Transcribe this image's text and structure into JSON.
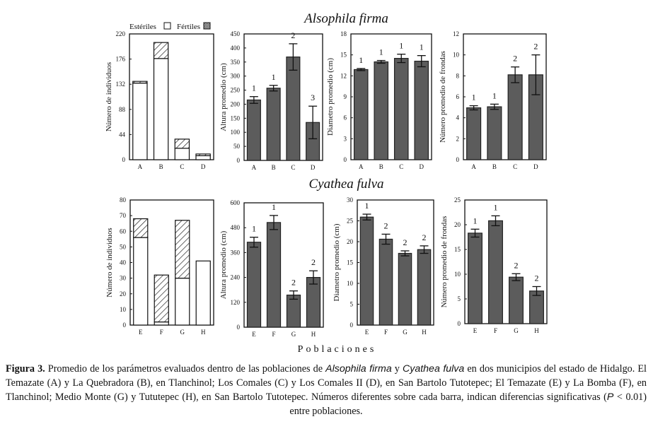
{
  "titles": {
    "top": "Alsophila firma",
    "bottom": "Cyathea fulva"
  },
  "x_axis_label": "Poblaciones",
  "legend": {
    "sterile": "Estériles",
    "fertile": "Fértiles"
  },
  "colors": {
    "bar": "#5c5c5c",
    "bar_stroke": "#222222",
    "sterile": "#ffffff",
    "fertile_hatch": "#111111"
  },
  "caption": {
    "label": "Figura 3.",
    "p1": " Promedio de los parámetros evaluados dentro de las poblaciones de ",
    "sp1": "Alsophila firma",
    "p2": " y ",
    "sp2": "Cyathea fulva",
    "p3": " en dos municipios del estado de Hidalgo. El Temazate (A) y La Quebradora (B), en Tlanchinol; Los Comales (C) y Los Comales II (D), en San Bartolo Tutotepec; El Temazate (E) y La Bomba (F), en Tlanchinol; Medio Monte (G) y Tututepec (H), en San Bartolo Tutotepec. Números diferentes sobre cada barra, indican diferencias significativas (",
    "pvar": "P",
    "p4": " < 0.01) entre poblaciones."
  },
  "chart_data": [
    {
      "type": "bar",
      "stacked": true,
      "species": "Alsophila firma",
      "ylabel": "Número de individuos",
      "categories": [
        "A",
        "B",
        "C",
        "D"
      ],
      "ylim": [
        0,
        220
      ],
      "yticks": [
        0,
        44,
        88,
        132,
        176,
        220
      ],
      "series": [
        {
          "name": "Estériles",
          "values": [
            134,
            177,
            20,
            7
          ]
        },
        {
          "name": "Fértiles",
          "values": [
            3,
            28,
            16,
            3
          ]
        }
      ]
    },
    {
      "type": "bar",
      "species": "Alsophila firma",
      "ylabel": "Altura promedio (cm)",
      "categories": [
        "A",
        "B",
        "C",
        "D"
      ],
      "ylim": [
        0,
        450
      ],
      "yticks": [
        0,
        50,
        100,
        150,
        200,
        250,
        300,
        350,
        400,
        450
      ],
      "values": [
        215,
        257,
        368,
        135
      ],
      "errors": [
        12,
        10,
        47,
        58
      ],
      "group_labels": [
        "1",
        "1",
        "2",
        "3"
      ]
    },
    {
      "type": "bar",
      "species": "Alsophila firma",
      "ylabel": "Diametro promedio (cm)",
      "categories": [
        "A",
        "B",
        "C",
        "D"
      ],
      "ylim": [
        0,
        18
      ],
      "yticks": [
        0,
        3,
        6,
        9,
        12,
        15,
        18
      ],
      "values": [
        12.9,
        14.0,
        14.5,
        14.1
      ],
      "errors": [
        0.15,
        0.2,
        0.6,
        0.8
      ],
      "group_labels": [
        "1",
        "1",
        "1",
        "1"
      ]
    },
    {
      "type": "bar",
      "species": "Alsophila firma",
      "ylabel": "Número promedio de frondas",
      "categories": [
        "A",
        "B",
        "C",
        "D"
      ],
      "ylim": [
        0,
        12
      ],
      "yticks": [
        0,
        2,
        4,
        6,
        8,
        10,
        12
      ],
      "values": [
        4.95,
        5.05,
        8.1,
        8.1
      ],
      "errors": [
        0.2,
        0.25,
        0.75,
        1.9
      ],
      "group_labels": [
        "1",
        "1",
        "2",
        "2"
      ]
    },
    {
      "type": "bar",
      "stacked": true,
      "species": "Cyathea fulva",
      "ylabel": "Número de individuos",
      "categories": [
        "E",
        "F",
        "G",
        "H"
      ],
      "ylim": [
        0,
        80
      ],
      "yticks": [
        0,
        10,
        20,
        30,
        40,
        50,
        60,
        70,
        80
      ],
      "series": [
        {
          "name": "Estériles",
          "values": [
            56,
            2,
            30,
            41
          ]
        },
        {
          "name": "Fértiles",
          "values": [
            12,
            30,
            37,
            0
          ]
        }
      ]
    },
    {
      "type": "bar",
      "species": "Cyathea fulva",
      "ylabel": "Altura promedio (cm)",
      "categories": [
        "E",
        "F",
        "G",
        "H"
      ],
      "ylim": [
        0,
        600
      ],
      "yticks": [
        0,
        120,
        240,
        360,
        480,
        600
      ],
      "values": [
        410,
        505,
        155,
        240
      ],
      "errors": [
        24,
        34,
        20,
        32
      ],
      "group_labels": [
        "1",
        "1",
        "2",
        "2"
      ]
    },
    {
      "type": "bar",
      "species": "Cyathea fulva",
      "ylabel": "Diametro promedio (cm)",
      "categories": [
        "E",
        "F",
        "G",
        "H"
      ],
      "ylim": [
        0,
        30
      ],
      "yticks": [
        0,
        5,
        10,
        15,
        20,
        25,
        30
      ],
      "values": [
        25.9,
        20.6,
        17.2,
        18.1
      ],
      "errors": [
        0.7,
        1.2,
        0.6,
        0.9
      ],
      "group_labels": [
        "1",
        "2",
        "2",
        "2"
      ]
    },
    {
      "type": "bar",
      "species": "Cyathea fulva",
      "ylabel": "Número promedio de frondas",
      "categories": [
        "E",
        "F",
        "G",
        "H"
      ],
      "ylim": [
        0,
        25
      ],
      "yticks": [
        0,
        5,
        10,
        15,
        20,
        25
      ],
      "values": [
        18.3,
        20.8,
        9.4,
        6.6
      ],
      "errors": [
        0.8,
        1.0,
        0.7,
        0.9
      ],
      "group_labels": [
        "1",
        "1",
        "2",
        "2"
      ]
    }
  ]
}
